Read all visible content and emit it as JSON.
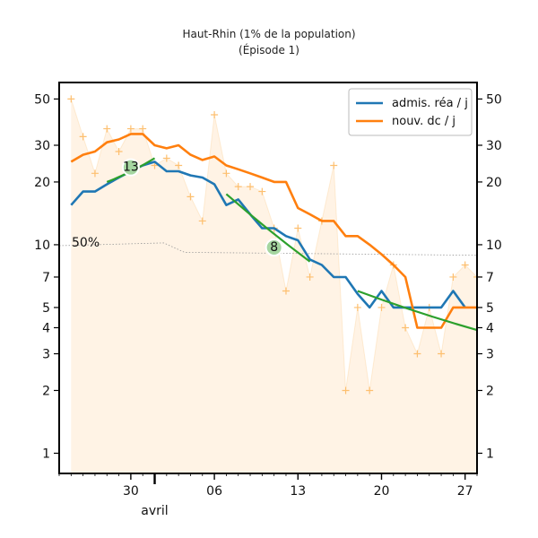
{
  "chart_data": {
    "type": "line",
    "title": "Haut-Rhin (1% de la population)",
    "subtitle": "(Épisode 1)",
    "y_scale": "log",
    "ylim": [
      0.8,
      60
    ],
    "y_ticks": [
      1,
      2,
      3,
      4,
      5,
      7,
      10,
      20,
      30,
      50
    ],
    "x_start": "2020-03-24",
    "x_end": "2020-04-28",
    "x_ticks": [
      {
        "date": "2020-03-30",
        "label": "30"
      },
      {
        "date": "2020-04-06",
        "label": "06"
      },
      {
        "date": "2020-04-13",
        "label": "13"
      },
      {
        "date": "2020-04-20",
        "label": "20"
      },
      {
        "date": "2020-04-27",
        "label": "27"
      }
    ],
    "month_marker": {
      "date": "2020-04-01",
      "label": "avril"
    },
    "reference_line": {
      "label": "50%"
    },
    "series": [
      {
        "name": "admis. réa / j",
        "color": "#1f77b4",
        "points": [
          [
            "2020-03-25",
            15.5
          ],
          [
            "2020-03-26",
            18.0
          ],
          [
            "2020-03-27",
            18.0
          ],
          [
            "2020-03-28",
            19.5
          ],
          [
            "2020-03-29",
            21.0
          ],
          [
            "2020-03-30",
            22.5
          ],
          [
            "2020-03-31",
            24.0
          ],
          [
            "2020-04-01",
            25.0
          ],
          [
            "2020-04-02",
            22.5
          ],
          [
            "2020-04-03",
            22.5
          ],
          [
            "2020-04-04",
            21.5
          ],
          [
            "2020-04-05",
            21.0
          ],
          [
            "2020-04-06",
            19.5
          ],
          [
            "2020-04-07",
            15.5
          ],
          [
            "2020-04-08",
            16.5
          ],
          [
            "2020-04-09",
            14.0
          ],
          [
            "2020-04-10",
            12.0
          ],
          [
            "2020-04-11",
            12.0
          ],
          [
            "2020-04-12",
            11.0
          ],
          [
            "2020-04-13",
            10.5
          ],
          [
            "2020-04-14",
            8.5
          ],
          [
            "2020-04-15",
            8.0
          ],
          [
            "2020-04-16",
            7.0
          ],
          [
            "2020-04-17",
            7.0
          ],
          [
            "2020-04-18",
            5.8
          ],
          [
            "2020-04-19",
            5.0
          ],
          [
            "2020-04-20",
            6.0
          ],
          [
            "2020-04-21",
            5.0
          ],
          [
            "2020-04-22",
            5.0
          ],
          [
            "2020-04-23",
            5.0
          ],
          [
            "2020-04-24",
            5.0
          ],
          [
            "2020-04-25",
            5.0
          ],
          [
            "2020-04-26",
            6.0
          ],
          [
            "2020-04-27",
            5.0
          ]
        ]
      },
      {
        "name": "nouv. dc / j",
        "color": "#ff7f0e",
        "points": [
          [
            "2020-03-25",
            25.0
          ],
          [
            "2020-03-26",
            27.0
          ],
          [
            "2020-03-27",
            28.0
          ],
          [
            "2020-03-28",
            31.0
          ],
          [
            "2020-03-29",
            32.0
          ],
          [
            "2020-03-30",
            34.0
          ],
          [
            "2020-03-31",
            34.0
          ],
          [
            "2020-04-01",
            30.0
          ],
          [
            "2020-04-02",
            29.0
          ],
          [
            "2020-04-03",
            30.0
          ],
          [
            "2020-04-04",
            27.0
          ],
          [
            "2020-04-05",
            25.5
          ],
          [
            "2020-04-06",
            26.5
          ],
          [
            "2020-04-07",
            24.0
          ],
          [
            "2020-04-08",
            23.0
          ],
          [
            "2020-04-09",
            22.0
          ],
          [
            "2020-04-10",
            21.0
          ],
          [
            "2020-04-11",
            20.0
          ],
          [
            "2020-04-12",
            20.0
          ],
          [
            "2020-04-13",
            15.0
          ],
          [
            "2020-04-14",
            14.0
          ],
          [
            "2020-04-15",
            13.0
          ],
          [
            "2020-04-16",
            13.0
          ],
          [
            "2020-04-17",
            11.0
          ],
          [
            "2020-04-18",
            11.0
          ],
          [
            "2020-04-19",
            10.0
          ],
          [
            "2020-04-20",
            9.0
          ],
          [
            "2020-04-21",
            8.0
          ],
          [
            "2020-04-22",
            7.0
          ],
          [
            "2020-04-23",
            4.0
          ],
          [
            "2020-04-24",
            4.0
          ],
          [
            "2020-04-25",
            4.0
          ],
          [
            "2020-04-26",
            5.0
          ],
          [
            "2020-04-27",
            5.0
          ],
          [
            "2020-04-28",
            5.0
          ]
        ]
      }
    ],
    "daily_values": {
      "color": "#fdbf6f",
      "points": [
        [
          "2020-03-25",
          50
        ],
        [
          "2020-03-26",
          33
        ],
        [
          "2020-03-27",
          22
        ],
        [
          "2020-03-28",
          36
        ],
        [
          "2020-03-29",
          28
        ],
        [
          "2020-03-30",
          36
        ],
        [
          "2020-03-31",
          36
        ],
        [
          "2020-04-01",
          24
        ],
        [
          "2020-04-02",
          26
        ],
        [
          "2020-04-03",
          24
        ],
        [
          "2020-04-04",
          17
        ],
        [
          "2020-04-05",
          13
        ],
        [
          "2020-04-06",
          42
        ],
        [
          "2020-04-07",
          22
        ],
        [
          "2020-04-08",
          19
        ],
        [
          "2020-04-09",
          19
        ],
        [
          "2020-04-10",
          18
        ],
        [
          "2020-04-11",
          12
        ],
        [
          "2020-04-12",
          6
        ],
        [
          "2020-04-13",
          12
        ],
        [
          "2020-04-14",
          7
        ],
        [
          "2020-04-15",
          13
        ],
        [
          "2020-04-16",
          24
        ],
        [
          "2020-04-17",
          2
        ],
        [
          "2020-04-18",
          5
        ],
        [
          "2020-04-19",
          2
        ],
        [
          "2020-04-20",
          5
        ],
        [
          "2020-04-21",
          8
        ],
        [
          "2020-04-22",
          4
        ],
        [
          "2020-04-23",
          3
        ],
        [
          "2020-04-24",
          5
        ],
        [
          "2020-04-25",
          3
        ],
        [
          "2020-04-26",
          7
        ],
        [
          "2020-04-27",
          8
        ],
        [
          "2020-04-28",
          7
        ]
      ]
    },
    "trend_lines": [
      {
        "label": "13",
        "color": "#2ca02c",
        "from": [
          "2020-03-28",
          20.0
        ],
        "to": [
          "2020-04-01",
          26.0
        ],
        "label_at": [
          "2020-03-30",
          23.5
        ]
      },
      {
        "label": "8",
        "color": "#2ca02c",
        "from": [
          "2020-04-07",
          17.5
        ],
        "to": [
          "2020-04-14",
          8.3
        ],
        "label_at": [
          "2020-04-11",
          9.7
        ]
      },
      {
        "label": "",
        "color": "#2ca02c",
        "from": [
          "2020-04-18",
          6.0
        ],
        "to": [
          "2020-04-28",
          3.9
        ],
        "label_at": null
      }
    ],
    "legend_placement": "top-right",
    "grid": false
  }
}
